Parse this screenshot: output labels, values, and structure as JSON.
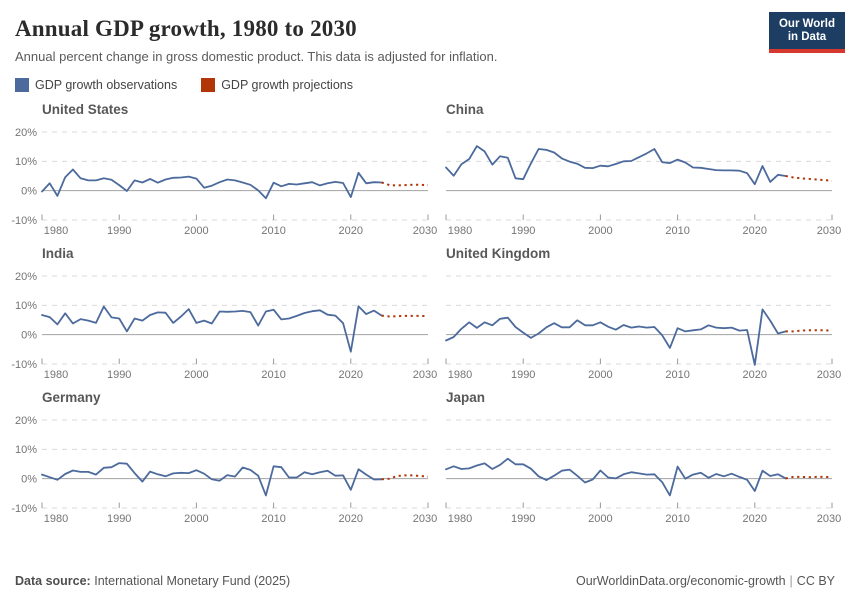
{
  "header": {
    "title": "Annual GDP growth, 1980 to 2030",
    "subtitle": "Annual percent change in gross domestic product. This data is adjusted for inflation.",
    "logo_line1": "Our World",
    "logo_line2": "in Data"
  },
  "legend": {
    "observations_label": "GDP growth observations",
    "projections_label": "GDP growth projections"
  },
  "colors": {
    "observations": "#4C6A9C",
    "projections": "#B13507",
    "gridline": "#d9d9d9",
    "zeroline": "#a3a3a3",
    "axis_text": "#757575",
    "tick": "#9a9a9a",
    "logo_bg": "#1d3d63",
    "logo_stripe": "#d7382e"
  },
  "footer": {
    "source_label": "Data source:",
    "source_value": "International Monetary Fund (2025)",
    "url": "OurWorldinData.org/economic-growth",
    "separator": "|",
    "license": "CC BY"
  },
  "chart_data": {
    "type": "line",
    "ylabel": "%",
    "ylim": [
      -10,
      20
    ],
    "xlim": [
      1980,
      2030
    ],
    "y_ticks": [
      20,
      10,
      0,
      -10
    ],
    "y_tick_labels": [
      "20%",
      "10%",
      "0%",
      "-10%"
    ],
    "x_ticks": [
      1980,
      1990,
      2000,
      2010,
      2020,
      2030
    ],
    "x_tick_labels": [
      "1980",
      "1990",
      "2000",
      "2010",
      "2020",
      "2030"
    ],
    "grid": true,
    "obs_start_year": 1980,
    "proj_start_year": 2024,
    "charts": [
      {
        "title": "United States",
        "observations": [
          -0.3,
          2.5,
          -1.8,
          4.6,
          7.2,
          4.2,
          3.5,
          3.5,
          4.2,
          3.7,
          1.9,
          -0.1,
          3.5,
          2.8,
          4.0,
          2.7,
          3.8,
          4.4,
          4.5,
          4.8,
          4.1,
          1.0,
          1.7,
          2.9,
          3.8,
          3.5,
          2.8,
          2.0,
          0.1,
          -2.6,
          2.7,
          1.5,
          2.3,
          2.1,
          2.5,
          2.9,
          1.8,
          2.5,
          3.0,
          2.6,
          -2.2,
          6.1,
          2.5,
          2.9,
          2.8
        ],
        "projections": [
          2.8,
          1.9,
          1.8,
          1.9,
          2.0,
          2.0,
          1.9
        ]
      },
      {
        "title": "China",
        "observations": [
          7.9,
          5.1,
          9.0,
          10.8,
          15.2,
          13.4,
          8.9,
          11.7,
          11.2,
          4.2,
          3.9,
          9.3,
          14.2,
          13.9,
          13.0,
          11.0,
          9.9,
          9.2,
          7.8,
          7.7,
          8.5,
          8.3,
          9.1,
          10.0,
          10.1,
          11.4,
          12.7,
          14.2,
          9.7,
          9.4,
          10.6,
          9.6,
          7.9,
          7.8,
          7.4,
          7.0,
          6.9,
          6.9,
          6.8,
          6.0,
          2.2,
          8.4,
          3.0,
          5.4,
          5.0
        ],
        "projections": [
          5.0,
          4.5,
          4.2,
          4.0,
          3.8,
          3.6,
          3.4
        ]
      },
      {
        "title": "India",
        "observations": [
          6.7,
          6.0,
          3.5,
          7.3,
          3.8,
          5.3,
          4.8,
          4.0,
          9.6,
          5.9,
          5.5,
          1.1,
          5.5,
          4.8,
          6.7,
          7.6,
          7.5,
          4.0,
          6.2,
          8.7,
          4.0,
          4.8,
          3.8,
          7.9,
          7.8,
          7.9,
          8.1,
          7.7,
          3.1,
          7.9,
          8.5,
          5.2,
          5.5,
          6.4,
          7.4,
          8.0,
          8.3,
          6.8,
          6.5,
          3.9,
          -5.8,
          9.7,
          7.0,
          8.2,
          6.5
        ],
        "projections": [
          6.5,
          6.2,
          6.3,
          6.4,
          6.4,
          6.4,
          6.3
        ]
      },
      {
        "title": "United Kingdom",
        "observations": [
          -2.0,
          -0.8,
          2.0,
          4.2,
          2.3,
          4.2,
          3.2,
          5.4,
          5.8,
          2.6,
          0.7,
          -1.1,
          0.4,
          2.5,
          3.9,
          2.5,
          2.5,
          4.9,
          3.2,
          3.2,
          4.2,
          2.7,
          1.7,
          3.3,
          2.4,
          2.8,
          2.4,
          2.6,
          -0.2,
          -4.5,
          2.2,
          1.1,
          1.5,
          1.8,
          3.2,
          2.4,
          2.2,
          2.4,
          1.4,
          1.6,
          -10.3,
          8.6,
          4.8,
          0.4,
          1.1
        ],
        "projections": [
          1.1,
          1.1,
          1.4,
          1.5,
          1.5,
          1.5,
          1.4
        ]
      },
      {
        "title": "Germany",
        "observations": [
          1.4,
          0.5,
          -0.4,
          1.6,
          2.8,
          2.3,
          2.3,
          1.4,
          3.7,
          3.9,
          5.3,
          5.1,
          1.9,
          -1.0,
          2.4,
          1.5,
          0.8,
          1.8,
          2.0,
          1.9,
          2.9,
          1.7,
          -0.2,
          -0.7,
          1.2,
          0.7,
          3.8,
          3.0,
          1.0,
          -5.7,
          4.2,
          3.9,
          0.4,
          0.4,
          2.2,
          1.5,
          2.2,
          2.7,
          1.0,
          1.1,
          -3.8,
          3.2,
          1.4,
          -0.3,
          -0.2
        ],
        "projections": [
          -0.2,
          0.0,
          0.9,
          1.1,
          1.1,
          0.9,
          0.7
        ]
      },
      {
        "title": "Japan",
        "observations": [
          3.2,
          4.2,
          3.3,
          3.5,
          4.5,
          5.2,
          3.3,
          4.7,
          6.8,
          4.9,
          4.9,
          3.4,
          0.8,
          -0.5,
          1.0,
          2.7,
          3.1,
          1.0,
          -1.3,
          -0.3,
          2.8,
          0.4,
          0.1,
          1.5,
          2.2,
          1.8,
          1.4,
          1.5,
          -1.2,
          -5.7,
          4.1,
          0.0,
          1.4,
          2.0,
          0.3,
          1.6,
          0.8,
          1.7,
          0.6,
          -0.4,
          -4.2,
          2.7,
          0.9,
          1.5,
          0.1
        ],
        "projections": [
          0.1,
          0.6,
          0.6,
          0.5,
          0.6,
          0.6,
          0.5
        ]
      }
    ]
  }
}
